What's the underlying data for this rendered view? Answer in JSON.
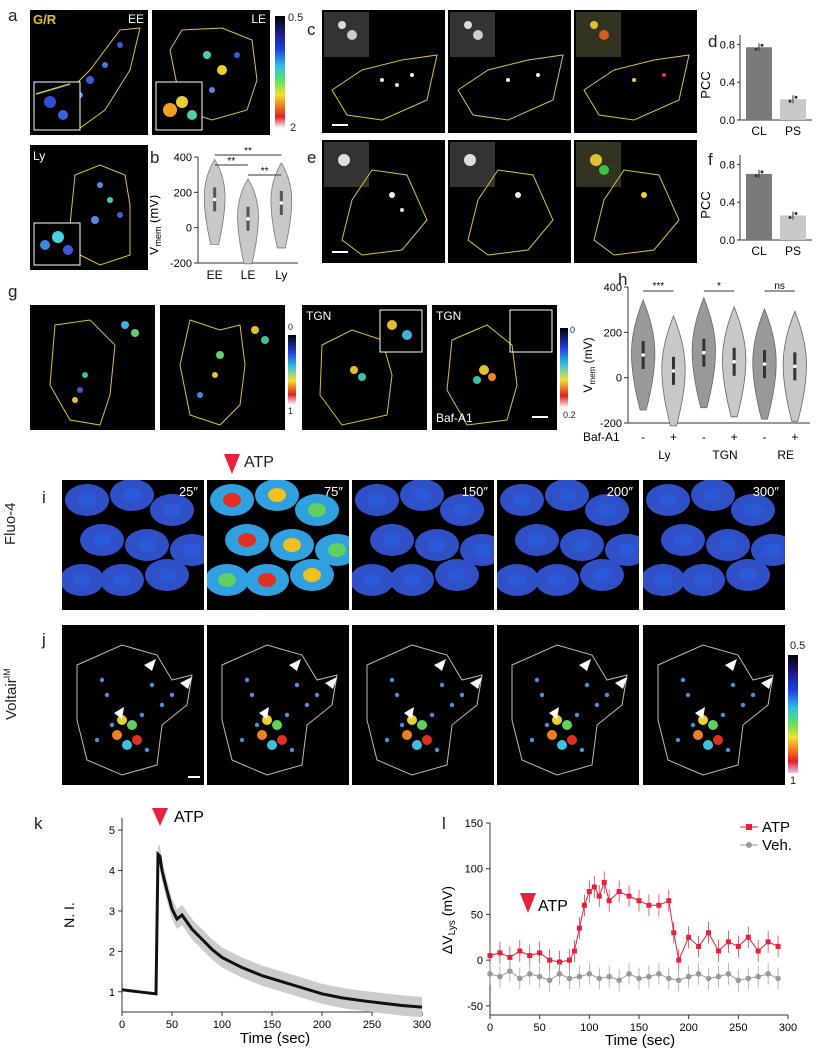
{
  "panels": {
    "a": "a",
    "b": "b",
    "c": "c",
    "d": "d",
    "e": "e",
    "f": "f",
    "g": "g",
    "h": "h",
    "i": "i",
    "j": "j",
    "k": "k",
    "l": "l"
  },
  "panel_a": {
    "legend": "G/R",
    "tags": [
      "EE",
      "LE",
      "Ly"
    ],
    "colorbar": {
      "top": "0.5",
      "bottom": "2"
    }
  },
  "panel_g": {
    "tags": [
      "TGN",
      "TGN",
      "Baf-A1"
    ],
    "colorbar": {
      "top": "0",
      "bottom": "1"
    },
    "colorbar2": {
      "top": "0",
      "bottom": "0.2"
    }
  },
  "panel_i": {
    "atp_label": "ATP",
    "side_label": "Fluo-4",
    "times": [
      "25″",
      "75″",
      "150″",
      "200″",
      "300″"
    ]
  },
  "panel_j": {
    "side_label": "Voltair",
    "side_label_sup": "IM",
    "colorbar": {
      "top": "0.5",
      "bottom": "1"
    }
  },
  "colors": {
    "red": "#e8203c",
    "grey": "#999999",
    "dark_grey": "#7a7a7a",
    "light_grey": "#c8c8c8",
    "outline_yellow": "#d8c23a"
  },
  "chart_data": [
    {
      "id": "b",
      "type": "violin",
      "categories": [
        "EE",
        "LE",
        "Ly"
      ],
      "ylabel": "V",
      "ylabel_sub": "mem",
      "ylabel_unit": " (mV)",
      "ylim": [
        -200,
        400
      ],
      "yticks": [
        -200,
        0,
        200,
        400
      ],
      "medians": [
        160,
        50,
        140
      ],
      "significance": [
        {
          "from": 0,
          "to": 1,
          "label": "**"
        },
        {
          "from": 0,
          "to": 2,
          "label": "**"
        },
        {
          "from": 1,
          "to": 2,
          "label": "**"
        }
      ]
    },
    {
      "id": "d",
      "type": "bar",
      "categories": [
        "CL",
        "PS"
      ],
      "values": [
        0.77,
        0.22
      ],
      "ylabel": "PCC",
      "ylim": [
        0,
        0.9
      ],
      "yticks": [
        0.0,
        0.4,
        0.8
      ]
    },
    {
      "id": "f",
      "type": "bar",
      "categories": [
        "CL",
        "PS"
      ],
      "values": [
        0.7,
        0.26
      ],
      "ylabel": "PCC",
      "ylim": [
        0,
        0.9
      ],
      "yticks": [
        0.0,
        0.4,
        0.8
      ]
    },
    {
      "id": "h",
      "type": "violin",
      "ylabel": "V",
      "ylabel_sub": "mem",
      "ylabel_unit": " (mV)",
      "ylim": [
        -200,
        400
      ],
      "yticks": [
        -200,
        0,
        200,
        400
      ],
      "row_label": "Baf-A1",
      "signs": [
        "-",
        "+",
        "-",
        "+",
        "-",
        "+"
      ],
      "groups": [
        "Ly",
        "TGN",
        "RE"
      ],
      "medians": [
        100,
        30,
        110,
        70,
        60,
        50
      ],
      "significance": [
        "***",
        "*",
        "ns"
      ]
    },
    {
      "id": "k",
      "type": "line",
      "xlabel": "Time (sec)",
      "ylabel": "N. I.",
      "annotation": "ATP",
      "xlim": [
        0,
        300
      ],
      "ylim": [
        0.5,
        5.3
      ],
      "xticks": [
        0,
        50,
        100,
        150,
        200,
        250,
        300
      ],
      "yticks": [
        1,
        2,
        3,
        4,
        5
      ],
      "x": [
        0,
        10,
        20,
        30,
        34,
        36,
        38,
        40,
        45,
        50,
        55,
        60,
        70,
        80,
        90,
        100,
        120,
        140,
        160,
        180,
        200,
        220,
        240,
        260,
        280,
        300
      ],
      "y": [
        1.05,
        1.02,
        0.99,
        0.96,
        0.95,
        4.4,
        4.35,
        4.0,
        3.5,
        3.05,
        2.8,
        2.9,
        2.55,
        2.3,
        2.05,
        1.85,
        1.6,
        1.4,
        1.25,
        1.1,
        0.95,
        0.85,
        0.78,
        0.72,
        0.66,
        0.62
      ]
    },
    {
      "id": "l",
      "type": "line",
      "xlabel": "Time (sec)",
      "ylabel": "ΔV",
      "ylabel_sub": "Lys",
      "ylabel_unit": " (mV)",
      "annotation": "ATP",
      "xlim": [
        0,
        300
      ],
      "ylim": [
        -60,
        150
      ],
      "xticks": [
        0,
        50,
        100,
        150,
        200,
        250,
        300
      ],
      "yticks": [
        -50,
        0,
        50,
        100,
        150
      ],
      "series": [
        {
          "name": "ATP",
          "x": [
            0,
            10,
            20,
            30,
            40,
            50,
            60,
            70,
            80,
            85,
            90,
            95,
            100,
            105,
            110,
            115,
            120,
            130,
            140,
            150,
            160,
            170,
            180,
            185,
            190,
            200,
            210,
            220,
            230,
            240,
            250,
            260,
            270,
            280,
            290
          ],
          "y": [
            5,
            8,
            3,
            10,
            5,
            8,
            0,
            -2,
            0,
            10,
            35,
            60,
            75,
            80,
            70,
            85,
            65,
            75,
            70,
            65,
            60,
            60,
            65,
            30,
            0,
            25,
            15,
            30,
            10,
            20,
            15,
            25,
            10,
            20,
            15
          ]
        },
        {
          "name": "Veh.",
          "x": [
            0,
            10,
            20,
            30,
            40,
            50,
            60,
            70,
            80,
            90,
            100,
            110,
            120,
            130,
            140,
            150,
            160,
            170,
            180,
            190,
            200,
            210,
            220,
            230,
            240,
            250,
            260,
            270,
            280,
            290
          ],
          "y": [
            -15,
            -18,
            -12,
            -20,
            -15,
            -18,
            -22,
            -15,
            -20,
            -18,
            -15,
            -20,
            -18,
            -22,
            -15,
            -20,
            -18,
            -15,
            -20,
            -22,
            -18,
            -15,
            -20,
            -18,
            -15,
            -22,
            -20,
            -18,
            -15,
            -20
          ]
        }
      ]
    }
  ]
}
